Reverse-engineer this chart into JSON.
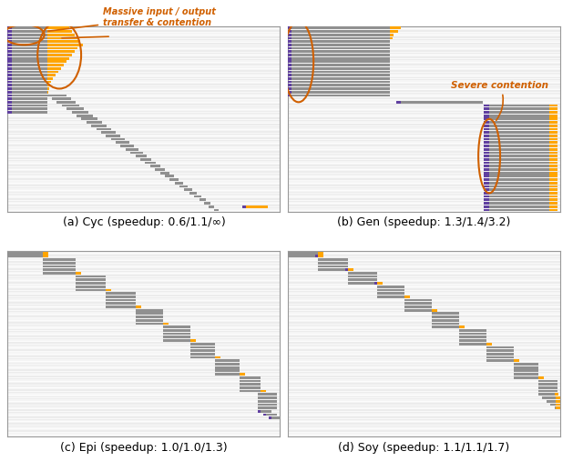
{
  "subplot_labels": [
    "(a) Cyc (speedup: 0.6/1.1/∞)",
    "(b) Gen (speedup: 1.3/1.4/3.2)",
    "(c) Epi (speedup: 1.0/1.0/1.3)",
    "(d) Soy (speedup: 1.1/1.1/1.7)"
  ],
  "colors": {
    "gray": "#909090",
    "orange": "#FFA500",
    "purple": "#6040A0",
    "plot_bg": "#ECECEC",
    "stripe": "#FFFFFF"
  },
  "annotation_color": "#D06000",
  "cyc_annotation": "Massive input / output\ntransfer & contention",
  "gen_annotation": "Severe contention"
}
